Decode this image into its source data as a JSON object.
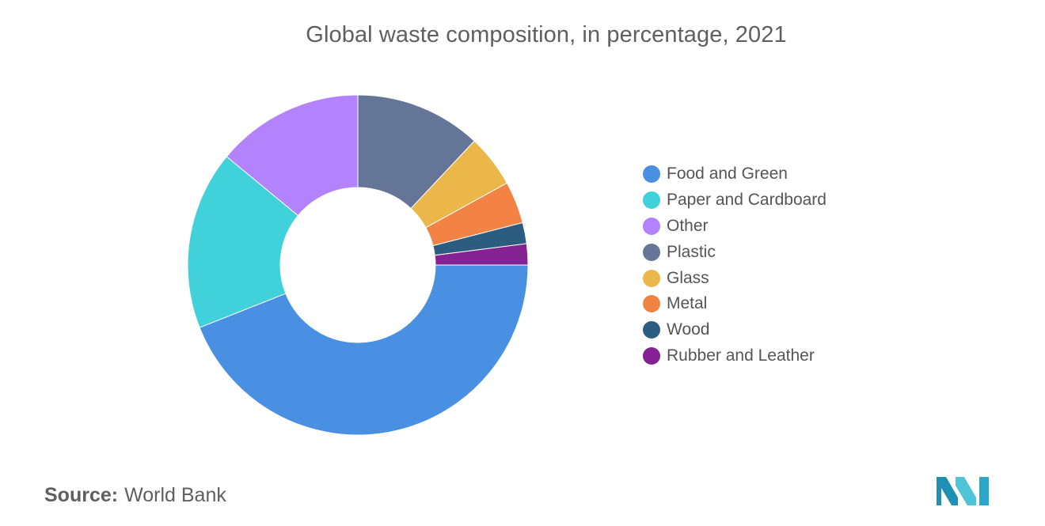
{
  "chart_data": {
    "type": "pie",
    "title": "Global waste composition, in percentage, 2021",
    "categories": [
      "Food and Green",
      "Paper and Cardboard",
      "Other",
      "Plastic",
      "Glass",
      "Metal",
      "Wood",
      "Rubber and Leather"
    ],
    "values": [
      44,
      17,
      14,
      12,
      5,
      4,
      2,
      2
    ],
    "colors": [
      "#4a90e2",
      "#40d1da",
      "#b283fc",
      "#647597",
      "#ebb74b",
      "#f28344",
      "#2c5d80",
      "#842193"
    ],
    "donut": true,
    "legend_position": "right"
  },
  "source": {
    "label": "Source:",
    "value": "World Bank"
  },
  "logo": {
    "icon": "mordor-intelligence-logo-icon",
    "colors": [
      "#1f8fb3",
      "#4fc4d9",
      "#2aa7c8"
    ]
  }
}
